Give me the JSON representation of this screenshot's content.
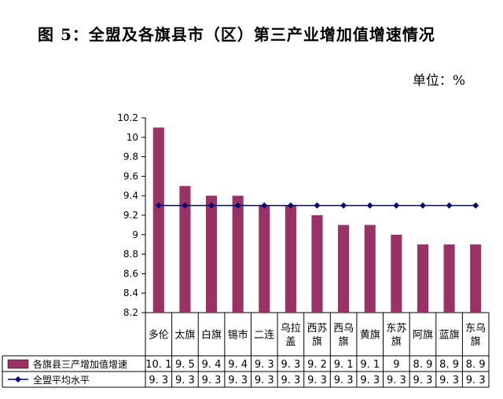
{
  "title": "图 5：全盟及各旗县市（区）第三产业增加值增速情况",
  "unit": "单位：%",
  "chart_data": {
    "type": "bar",
    "categories": [
      "多伦",
      "太旗",
      "白旗",
      "锡市",
      "二连",
      "乌拉盖",
      "西苏旗",
      "西乌旗",
      "黄旗",
      "东苏旗",
      "阿旗",
      "蓝旗",
      "东乌旗"
    ],
    "category_lines": [
      [
        "多伦"
      ],
      [
        "太旗"
      ],
      [
        "白旗"
      ],
      [
        "锡市"
      ],
      [
        "二连"
      ],
      [
        "乌拉",
        "盖"
      ],
      [
        "西苏",
        "旗"
      ],
      [
        "西乌",
        "旗"
      ],
      [
        "黄旗"
      ],
      [
        "东苏",
        "旗"
      ],
      [
        "阿旗"
      ],
      [
        "蓝旗"
      ],
      [
        "东乌",
        "旗"
      ]
    ],
    "series": [
      {
        "name": "各旗县三产增加值增速",
        "type": "bar",
        "color": "#993366",
        "values": [
          10.1,
          9.5,
          9.4,
          9.4,
          9.3,
          9.3,
          9.2,
          9.1,
          9.1,
          9,
          8.9,
          8.9,
          8.9
        ],
        "labels": [
          "10. 1",
          "9. 5",
          "9. 4",
          "9. 4",
          "9. 3",
          "9. 3",
          "9. 2",
          "9. 1",
          "9. 1",
          "9",
          "8. 9",
          "8. 9",
          "8. 9"
        ]
      },
      {
        "name": "全盟平均水平",
        "type": "line",
        "color": "#000080",
        "values": [
          9.3,
          9.3,
          9.3,
          9.3,
          9.3,
          9.3,
          9.3,
          9.3,
          9.3,
          9.3,
          9.3,
          9.3,
          9.3
        ],
        "labels": [
          "9. 3",
          "9. 3",
          "9. 3",
          "9. 3",
          "9. 3",
          "9. 3",
          "9. 3",
          "9. 3",
          "9. 3",
          "9. 3",
          "9. 3",
          "9. 3",
          "9. 3"
        ]
      }
    ],
    "ylim": [
      8.2,
      10.2
    ],
    "yticks": [
      8.2,
      8.4,
      8.6,
      8.8,
      9,
      9.2,
      9.4,
      9.6,
      9.8,
      10,
      10.2
    ],
    "ytick_labels": [
      "8.2",
      "8.4",
      "8.6",
      "8.8",
      "9",
      "9.2",
      "9.4",
      "9.6",
      "9.8",
      "10",
      "10.2"
    ],
    "grid": false,
    "legend": "data-table"
  }
}
